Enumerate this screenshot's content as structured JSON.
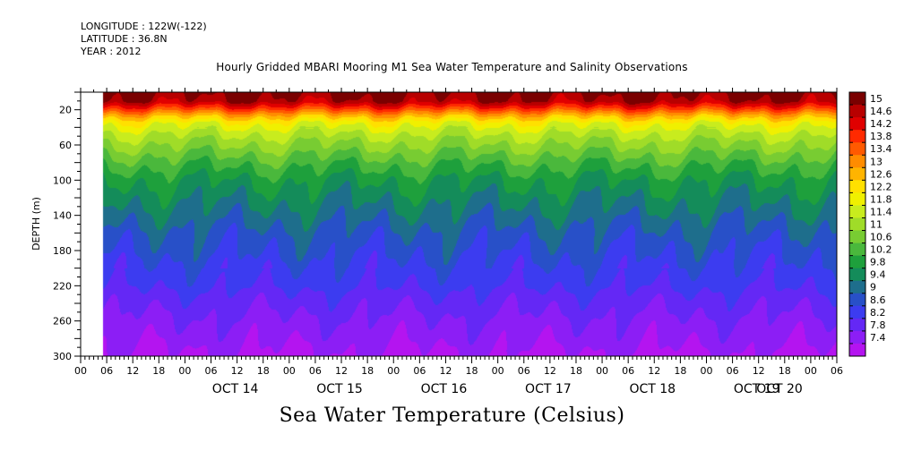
{
  "meta": {
    "longitude": "LONGITUDE : 122W(-122)",
    "latitude": "LATITUDE : 36.8N",
    "year": "YEAR : 2012"
  },
  "chart_data": {
    "type": "heatmap",
    "title": "Hourly Gridded MBARI Mooring M1 Sea Water Temperature and Salinity Observations",
    "colorbar_title": "Sea Water Temperature (Celsius)",
    "ylabel": "DEPTH (m)",
    "ylim": [
      300,
      0
    ],
    "yticks": [
      "20",
      "60",
      "100",
      "140",
      "180",
      "220",
      "260",
      "300"
    ],
    "ytick_values": [
      20,
      60,
      100,
      140,
      180,
      220,
      260,
      300
    ],
    "x_range_hours": [
      0,
      174
    ],
    "data_start_hour": 5,
    "hour_ticks": [
      {
        "h": 0,
        "label": "00"
      },
      {
        "h": 6,
        "label": "06"
      },
      {
        "h": 12,
        "label": "12"
      },
      {
        "h": 18,
        "label": "18"
      },
      {
        "h": 24,
        "label": "00"
      },
      {
        "h": 30,
        "label": "06"
      },
      {
        "h": 36,
        "label": "12"
      },
      {
        "h": 42,
        "label": "18"
      },
      {
        "h": 48,
        "label": "00"
      },
      {
        "h": 54,
        "label": "06"
      },
      {
        "h": 60,
        "label": "12"
      },
      {
        "h": 66,
        "label": "18"
      },
      {
        "h": 72,
        "label": "00"
      },
      {
        "h": 78,
        "label": "06"
      },
      {
        "h": 84,
        "label": "12"
      },
      {
        "h": 90,
        "label": "18"
      },
      {
        "h": 96,
        "label": "00"
      },
      {
        "h": 102,
        "label": "06"
      },
      {
        "h": 108,
        "label": "12"
      },
      {
        "h": 114,
        "label": "18"
      },
      {
        "h": 120,
        "label": "00"
      },
      {
        "h": 126,
        "label": "06"
      },
      {
        "h": 132,
        "label": "12"
      },
      {
        "h": 138,
        "label": "18"
      },
      {
        "h": 144,
        "label": "00"
      },
      {
        "h": 150,
        "label": "06"
      },
      {
        "h": 156,
        "label": "12"
      },
      {
        "h": 162,
        "label": "18"
      },
      {
        "h": 168,
        "label": "00"
      },
      {
        "h": 174,
        "label": "06"
      }
    ],
    "date_labels": [
      {
        "h": 36,
        "label": "OCT 14"
      },
      {
        "h": 60,
        "label": "OCT 15"
      },
      {
        "h": 84,
        "label": "OCT 16"
      },
      {
        "h": 108,
        "label": "OCT 17"
      },
      {
        "h": 132,
        "label": "OCT 18"
      },
      {
        "h": 156,
        "label": "OCT 19"
      },
      {
        "h": 180,
        "label": "OCT 20"
      }
    ],
    "colorbar_levels": [
      "15",
      "14.6",
      "14.2",
      "13.8",
      "13.4",
      "13",
      "12.6",
      "12.2",
      "11.8",
      "11.4",
      "11",
      "10.6",
      "10.2",
      "9.8",
      "9.4",
      "9",
      "8.6",
      "8.2",
      "7.8",
      "7.4"
    ],
    "colorbar_colors": [
      "#7a0000",
      "#b80000",
      "#e00000",
      "#ff2a00",
      "#ff5a00",
      "#ff8c00",
      "#ffb400",
      "#ffe000",
      "#f0f000",
      "#c8ec1e",
      "#a0dc28",
      "#78cc32",
      "#4ab83c",
      "#1ea03c",
      "#148c5a",
      "#1e6e8c",
      "#2850c8",
      "#3c3cf0",
      "#6428f5",
      "#8c1ef5",
      "#b414f0"
    ],
    "value_range": [
      7.4,
      15.4
    ],
    "temperature_profile": {
      "depths": [
        0,
        10,
        18,
        26,
        34,
        40,
        50,
        60,
        80,
        100,
        120,
        140,
        160,
        180,
        200,
        220,
        240,
        260,
        280,
        300
      ],
      "values": [
        15.2,
        14.9,
        14.0,
        13.0,
        12.2,
        11.9,
        11.5,
        11.2,
        10.6,
        10.1,
        9.8,
        9.5,
        9.2,
        9.0,
        8.8,
        8.6,
        8.3,
        8.1,
        7.9,
        7.7
      ]
    }
  }
}
